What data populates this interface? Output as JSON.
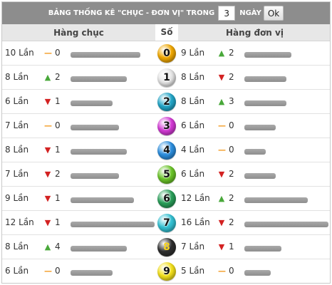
{
  "title": {
    "label": "BẢNG THỐNG KÊ \"CHỤC - ĐƠN VỊ\" TRONG",
    "days_value": "3",
    "days_unit": "NGÀY",
    "ok_label": "Ok"
  },
  "headers": {
    "chuc": "Hàng chục",
    "so": "Số",
    "don_vi": "Hàng đơn vị"
  },
  "rows": [
    {
      "digit": "0",
      "ball_color": "#f2a900",
      "chuc_count": "10 Lần",
      "chuc_trend": "same",
      "chuc_change": "0",
      "chuc_bar": 0.83,
      "dv_count": "9 Lần",
      "dv_trend": "up",
      "dv_change": "2",
      "dv_bar": 0.56
    },
    {
      "digit": "1",
      "ball_color": "#e8e8e8",
      "chuc_count": "8 Lần",
      "chuc_trend": "up",
      "chuc_change": "2",
      "chuc_bar": 0.67,
      "dv_count": "8 Lần",
      "dv_trend": "down",
      "dv_change": "2",
      "dv_bar": 0.5
    },
    {
      "digit": "2",
      "ball_color": "#23a7c9",
      "chuc_count": "6 Lần",
      "chuc_trend": "down",
      "chuc_change": "1",
      "chuc_bar": 0.5,
      "dv_count": "8 Lần",
      "dv_trend": "up",
      "dv_change": "3",
      "dv_bar": 0.5
    },
    {
      "digit": "3",
      "ball_color": "#d43ad6",
      "chuc_count": "7 Lần",
      "chuc_trend": "same",
      "chuc_change": "0",
      "chuc_bar": 0.58,
      "dv_count": "6 Lần",
      "dv_trend": "same",
      "dv_change": "0",
      "dv_bar": 0.375
    },
    {
      "digit": "4",
      "ball_color": "#2c8fe0",
      "chuc_count": "8 Lần",
      "chuc_trend": "down",
      "chuc_change": "1",
      "chuc_bar": 0.67,
      "dv_count": "4 Lần",
      "dv_trend": "same",
      "dv_change": "0",
      "dv_bar": 0.25
    },
    {
      "digit": "5",
      "ball_color": "#6cc629",
      "chuc_count": "7 Lần",
      "chuc_trend": "down",
      "chuc_change": "2",
      "chuc_bar": 0.58,
      "dv_count": "6 Lần",
      "dv_trend": "down",
      "dv_change": "2",
      "dv_bar": 0.375
    },
    {
      "digit": "6",
      "ball_color": "#2aa05a",
      "chuc_count": "9 Lần",
      "chuc_trend": "down",
      "chuc_change": "1",
      "chuc_bar": 0.75,
      "dv_count": "12 Lần",
      "dv_trend": "up",
      "dv_change": "2",
      "dv_bar": 0.75
    },
    {
      "digit": "7",
      "ball_color": "#33c2d4",
      "chuc_count": "12 Lần",
      "chuc_trend": "down",
      "chuc_change": "1",
      "chuc_bar": 1.0,
      "dv_count": "16 Lần",
      "dv_trend": "down",
      "dv_change": "2",
      "dv_bar": 1.0
    },
    {
      "digit": "8",
      "ball_color": "#2e2e2e",
      "chuc_count": "8 Lần",
      "chuc_trend": "up",
      "chuc_change": "4",
      "chuc_bar": 0.67,
      "dv_count": "7 Lần",
      "dv_trend": "down",
      "dv_change": "1",
      "dv_bar": 0.44
    },
    {
      "digit": "9",
      "ball_color": "#f5e21c",
      "chuc_count": "6 Lần",
      "chuc_trend": "same",
      "chuc_change": "0",
      "chuc_bar": 0.5,
      "dv_count": "5 Lần",
      "dv_trend": "same",
      "dv_change": "0",
      "dv_bar": 0.31
    }
  ]
}
